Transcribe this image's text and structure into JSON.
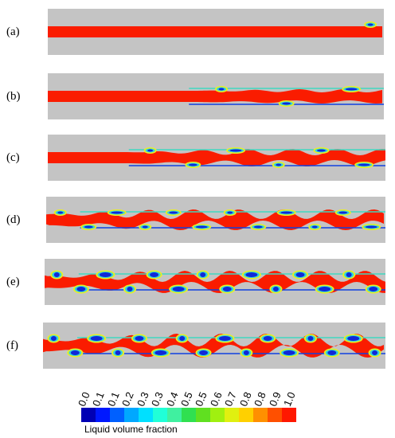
{
  "panels": [
    {
      "label": "(a)"
    },
    {
      "label": "(b)"
    },
    {
      "label": "(c)"
    },
    {
      "label": "(d)"
    },
    {
      "label": "(e)"
    },
    {
      "label": "(f)"
    }
  ],
  "colorbar": {
    "title": "Liquid volume fraction",
    "ticks": [
      "0.0",
      "0.1",
      "0.1",
      "0.2",
      "0.3",
      "0.3",
      "0.4",
      "0.5",
      "0.5",
      "0.6",
      "0.7",
      "0.8",
      "0.8",
      "0.9",
      "1.0"
    ],
    "colors": [
      "#0000b4",
      "#0018ff",
      "#0060ff",
      "#00a8ff",
      "#00e0ff",
      "#20ffd8",
      "#40f0a0",
      "#30e050",
      "#60e020",
      "#a0f010",
      "#e0f010",
      "#ffd000",
      "#ff9000",
      "#ff5000",
      "#ff1800"
    ]
  },
  "colors": {
    "wall": "#c4c4c4",
    "liquid": "#fa1c00",
    "gas": "#1028d8"
  }
}
